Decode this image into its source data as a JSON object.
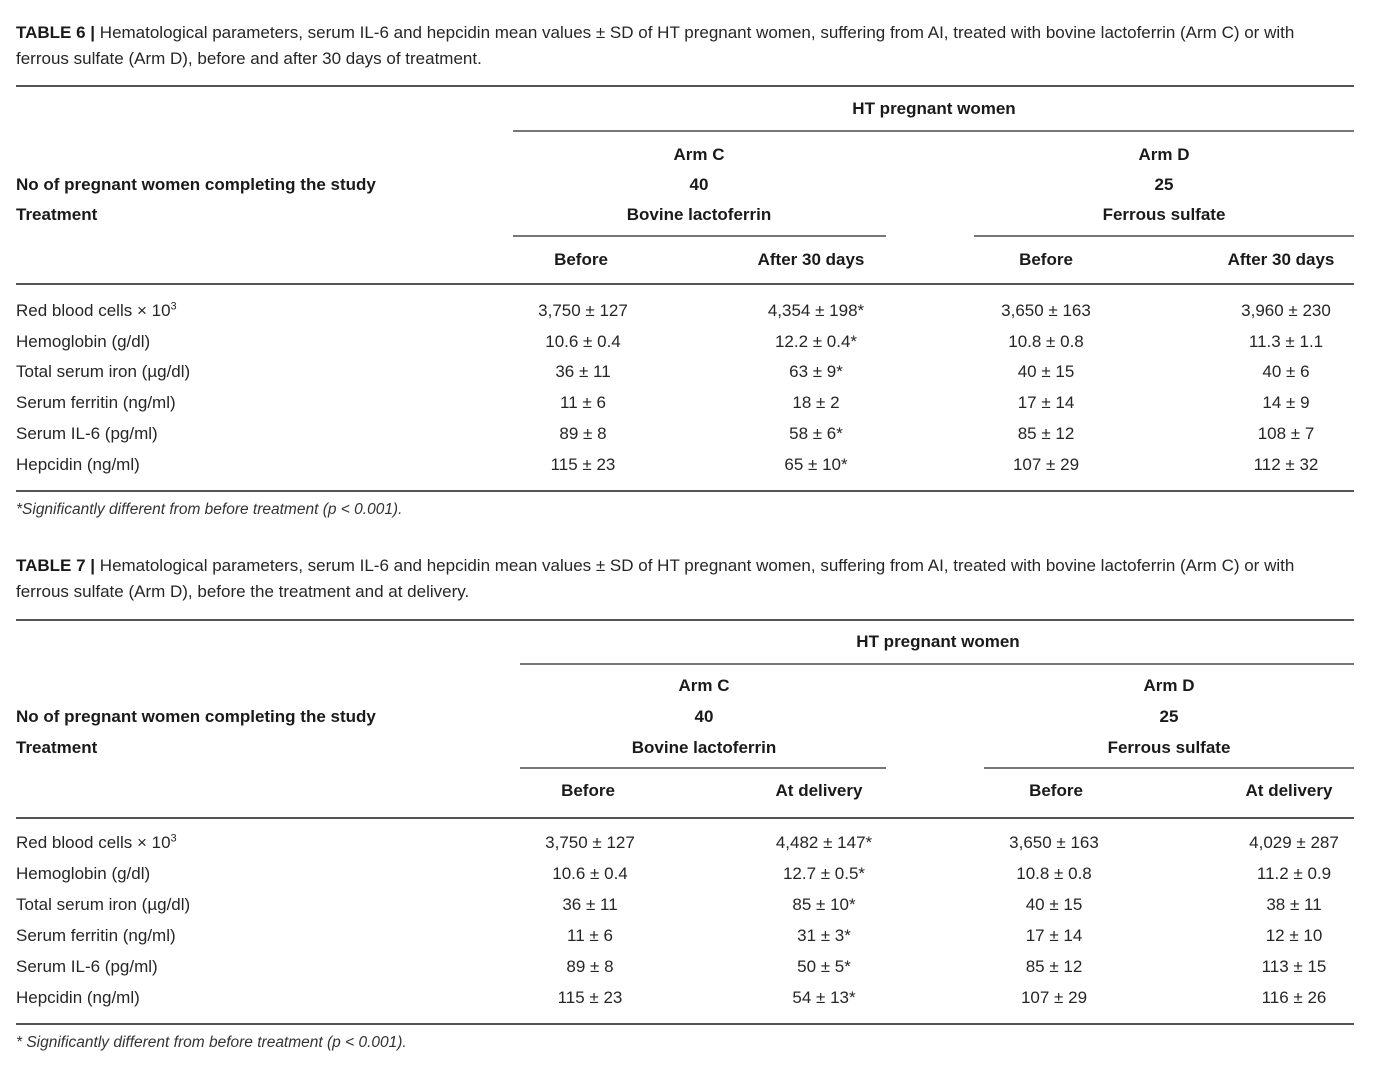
{
  "tables": [
    {
      "label": "TABLE 6 |",
      "caption": " Hematological parameters, serum IL-6 and hepcidin mean values ± SD of HT pregnant women, suffering from AI, treated with bovine lactoferrin (Arm C) or with ferrous sulfate (Arm D), before and after 30 days of treatment.",
      "group_header": "HT pregnant women",
      "arms": [
        {
          "name": "Arm C",
          "n": "40",
          "treatment": "Bovine lactoferrin"
        },
        {
          "name": "Arm D",
          "n": "25",
          "treatment": "Ferrous sulfate"
        }
      ],
      "n_label": "No of pregnant women completing the study",
      "treatment_label": "Treatment",
      "subcols": [
        "Before",
        "After 30 days",
        "Before",
        "After 30 days"
      ],
      "rows": [
        {
          "label": "Red blood cells × 10",
          "sup": "3",
          "values": [
            "3,750 ± 127",
            "4,354 ± 198*",
            "3,650 ± 163",
            "3,960 ± 230"
          ]
        },
        {
          "label": "Hemoglobin (g/dl)",
          "sup": "",
          "values": [
            "10.6 ± 0.4",
            "12.2 ± 0.4*",
            "10.8 ± 0.8",
            "11.3 ± 1.1"
          ]
        },
        {
          "label": "Total serum iron (µg/dl)",
          "sup": "",
          "values": [
            "36 ± 11",
            "63 ± 9*",
            "40 ± 15",
            "40 ± 6"
          ]
        },
        {
          "label": "Serum ferritin (ng/ml)",
          "sup": "",
          "values": [
            "11 ± 6",
            "18 ± 2",
            "17 ± 14",
            "14 ± 9"
          ]
        },
        {
          "label": "Serum IL-6 (pg/ml)",
          "sup": "",
          "values": [
            "89 ± 8",
            "58 ± 6*",
            "85 ± 12",
            "108 ± 7"
          ]
        },
        {
          "label": "Hepcidin (ng/ml)",
          "sup": "",
          "values": [
            "115 ± 23",
            "65 ± 10*",
            "107 ± 29",
            "112 ± 32"
          ]
        }
      ],
      "footnote": "*Significantly different from before treatment (p < 0.001)."
    },
    {
      "label": "TABLE 7 |",
      "caption": " Hematological parameters, serum IL-6 and hepcidin mean values ± SD of HT pregnant women, suffering from AI, treated with bovine lactoferrin (Arm C) or with ferrous sulfate (Arm D), before the treatment and at delivery.",
      "group_header": "HT pregnant women",
      "arms": [
        {
          "name": "Arm C",
          "n": "40",
          "treatment": "Bovine lactoferrin"
        },
        {
          "name": "Arm D",
          "n": "25",
          "treatment": "Ferrous sulfate"
        }
      ],
      "n_label": "No of pregnant women completing the study",
      "treatment_label": "Treatment",
      "subcols": [
        "Before",
        "At delivery",
        "Before",
        "At delivery"
      ],
      "rows": [
        {
          "label": "Red blood cells × 10",
          "sup": "3",
          "values": [
            "3,750 ± 127",
            "4,482 ± 147*",
            "3,650 ± 163",
            "4,029 ± 287"
          ]
        },
        {
          "label": "Hemoglobin (g/dl)",
          "sup": "",
          "values": [
            "10.6 ± 0.4",
            "12.7 ± 0.5*",
            "10.8 ± 0.8",
            "11.2 ± 0.9"
          ]
        },
        {
          "label": "Total serum iron (µg/dl)",
          "sup": "",
          "values": [
            "36 ± 11",
            "85 ± 10*",
            "40 ± 15",
            "38 ± 11"
          ]
        },
        {
          "label": "Serum ferritin (ng/ml)",
          "sup": "",
          "values": [
            "11 ± 6",
            "31 ± 3*",
            "17 ± 14",
            "12 ± 10"
          ]
        },
        {
          "label": "Serum IL-6 (pg/ml)",
          "sup": "",
          "values": [
            "89 ± 8",
            "50 ± 5*",
            "85 ± 12",
            "113 ± 15"
          ]
        },
        {
          "label": "Hepcidin (ng/ml)",
          "sup": "",
          "values": [
            "115 ± 23",
            "54 ± 13*",
            "107 ± 29",
            "116 ± 26"
          ]
        }
      ],
      "footnote": "* Significantly different from before treatment (p < 0.001)."
    }
  ]
}
